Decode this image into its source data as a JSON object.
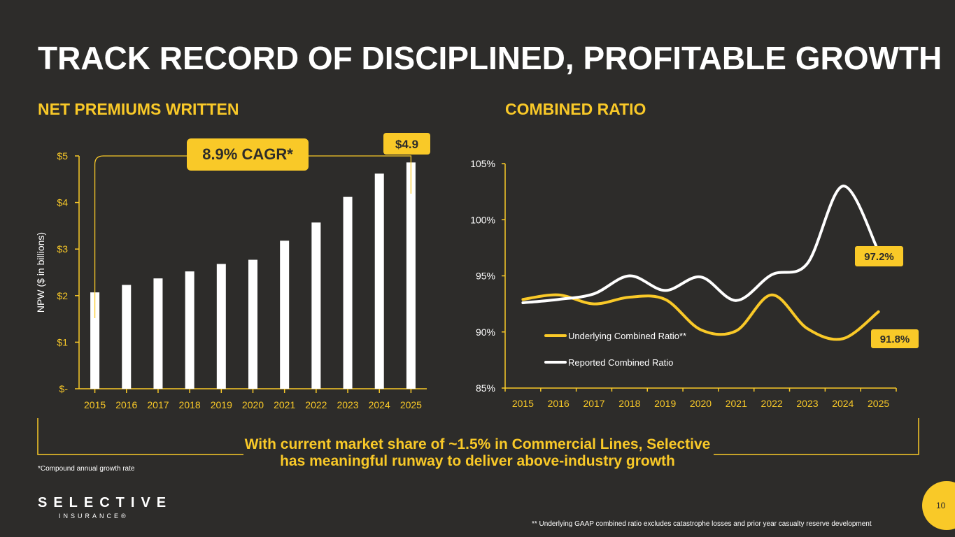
{
  "title": "TRACK RECORD OF DISCIPLINED, PROFITABLE GROWTH",
  "colors": {
    "background": "#2d2c2a",
    "accent": "#f9c928",
    "bar": "#ffffff"
  },
  "callout": {
    "line1": "With current market share of ~1.5% in Commercial Lines, Selective",
    "line2": "has meaningful runway to deliver above-industry growth"
  },
  "footnotes": {
    "cagr": "*Compound annual growth rate",
    "underlying": "** Underlying GAAP combined ratio excludes catastrophe losses and prior year casualty reserve development"
  },
  "logo": {
    "name": "SELECTIVE",
    "sub": "INSURANCE®"
  },
  "page_number": "10",
  "chart_data": [
    {
      "type": "bar",
      "title": "NET PREMIUMS WRITTEN",
      "ylabel": "NPW ($ in billions)",
      "xlabel": "",
      "categories": [
        "2015",
        "2016",
        "2017",
        "2018",
        "2019",
        "2020",
        "2021",
        "2022",
        "2023",
        "2024",
        "2025"
      ],
      "values": [
        2.07,
        2.23,
        2.37,
        2.52,
        2.68,
        2.77,
        3.18,
        3.57,
        4.12,
        4.62,
        4.86
      ],
      "ylim": [
        0,
        5
      ],
      "yticks": [
        "$-",
        "$1",
        "$2",
        "$3",
        "$4",
        "$5"
      ],
      "cagr_label": "8.9% CAGR*",
      "end_label": "$4.9"
    },
    {
      "type": "line",
      "title": "COMBINED RATIO",
      "x": [
        "2015",
        "2016",
        "2017",
        "2018",
        "2019",
        "2020",
        "2021",
        "2022",
        "2023",
        "2024",
        "2025"
      ],
      "ylim": [
        85,
        105
      ],
      "yticks": [
        "85%",
        "90%",
        "95%",
        "100%",
        "105%"
      ],
      "series": [
        {
          "name": "Underlying Combined Ratio**",
          "color": "#f9c928",
          "values": [
            92.9,
            93.3,
            92.5,
            93.1,
            92.9,
            90.2,
            90.1,
            93.3,
            90.3,
            89.4,
            91.8
          ],
          "end_label": "91.8%"
        },
        {
          "name": "Reported Combined Ratio",
          "color": "#ffffff",
          "values": [
            92.6,
            92.9,
            93.4,
            95.0,
            93.7,
            94.9,
            92.8,
            95.1,
            96.1,
            103.0,
            97.2
          ],
          "end_label": "97.2%"
        }
      ]
    }
  ]
}
